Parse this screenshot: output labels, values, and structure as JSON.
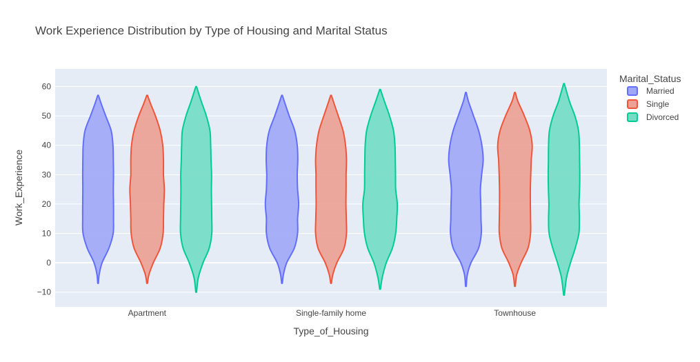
{
  "chart_data": {
    "type": "violin",
    "title": "Work Experience Distribution by Type of Housing and Marital Status",
    "xlabel": "Type_of_Housing",
    "ylabel": "Work_Experience",
    "categories": [
      "Apartment",
      "Single-family home",
      "Townhouse"
    ],
    "ylim": [
      -15,
      66
    ],
    "yticks": [
      -10,
      0,
      10,
      20,
      30,
      40,
      50,
      60
    ],
    "grid": true,
    "legend": {
      "title": "Marital_Status",
      "placement": "top-right"
    },
    "series": [
      {
        "name": "Married",
        "fill": "#a0a8f5",
        "line": "#636efa",
        "violins": [
          {
            "category": "Apartment",
            "min": -7,
            "max": 57,
            "profile": [
              [
                -7,
                0.02
              ],
              [
                -4,
                0.06
              ],
              [
                0,
                0.22
              ],
              [
                5,
                0.6
              ],
              [
                10,
                0.83
              ],
              [
                15,
                0.85
              ],
              [
                20,
                0.85
              ],
              [
                25,
                0.84
              ],
              [
                30,
                0.85
              ],
              [
                35,
                0.84
              ],
              [
                40,
                0.82
              ],
              [
                45,
                0.72
              ],
              [
                50,
                0.42
              ],
              [
                54,
                0.18
              ],
              [
                57,
                0.02
              ]
            ]
          },
          {
            "category": "Single-family home",
            "min": -7,
            "max": 57,
            "profile": [
              [
                -7,
                0.02
              ],
              [
                -4,
                0.08
              ],
              [
                0,
                0.26
              ],
              [
                5,
                0.68
              ],
              [
                10,
                0.86
              ],
              [
                15,
                0.86
              ],
              [
                20,
                0.92
              ],
              [
                25,
                0.86
              ],
              [
                30,
                0.84
              ],
              [
                35,
                0.87
              ],
              [
                40,
                0.84
              ],
              [
                45,
                0.7
              ],
              [
                50,
                0.4
              ],
              [
                54,
                0.18
              ],
              [
                57,
                0.02
              ]
            ]
          },
          {
            "category": "Townhouse",
            "min": -8,
            "max": 58,
            "profile": [
              [
                -8,
                0.02
              ],
              [
                -4,
                0.08
              ],
              [
                0,
                0.28
              ],
              [
                5,
                0.7
              ],
              [
                10,
                0.85
              ],
              [
                15,
                0.83
              ],
              [
                20,
                0.82
              ],
              [
                25,
                0.8
              ],
              [
                30,
                0.87
              ],
              [
                35,
                0.95
              ],
              [
                40,
                0.88
              ],
              [
                45,
                0.7
              ],
              [
                50,
                0.42
              ],
              [
                55,
                0.14
              ],
              [
                58,
                0.02
              ]
            ]
          }
        ]
      },
      {
        "name": "Single",
        "fill": "#eda195",
        "line": "#ef553b",
        "violins": [
          {
            "category": "Apartment",
            "min": -7,
            "max": 57,
            "profile": [
              [
                -7,
                0.02
              ],
              [
                -4,
                0.1
              ],
              [
                0,
                0.34
              ],
              [
                5,
                0.72
              ],
              [
                10,
                0.88
              ],
              [
                15,
                0.9
              ],
              [
                20,
                0.92
              ],
              [
                25,
                0.95
              ],
              [
                30,
                0.9
              ],
              [
                35,
                0.9
              ],
              [
                40,
                0.86
              ],
              [
                45,
                0.72
              ],
              [
                50,
                0.46
              ],
              [
                54,
                0.2
              ],
              [
                57,
                0.02
              ]
            ]
          },
          {
            "category": "Single-family home",
            "min": -7,
            "max": 57,
            "profile": [
              [
                -7,
                0.02
              ],
              [
                -4,
                0.1
              ],
              [
                0,
                0.32
              ],
              [
                5,
                0.72
              ],
              [
                10,
                0.85
              ],
              [
                15,
                0.84
              ],
              [
                20,
                0.82
              ],
              [
                25,
                0.83
              ],
              [
                30,
                0.83
              ],
              [
                35,
                0.85
              ],
              [
                40,
                0.8
              ],
              [
                45,
                0.66
              ],
              [
                50,
                0.4
              ],
              [
                54,
                0.18
              ],
              [
                57,
                0.02
              ]
            ]
          },
          {
            "category": "Townhouse",
            "min": -8,
            "max": 58,
            "profile": [
              [
                -8,
                0.02
              ],
              [
                -4,
                0.1
              ],
              [
                0,
                0.34
              ],
              [
                5,
                0.72
              ],
              [
                10,
                0.86
              ],
              [
                15,
                0.86
              ],
              [
                20,
                0.85
              ],
              [
                25,
                0.85
              ],
              [
                30,
                0.87
              ],
              [
                35,
                0.9
              ],
              [
                40,
                0.95
              ],
              [
                45,
                0.82
              ],
              [
                50,
                0.52
              ],
              [
                55,
                0.16
              ],
              [
                58,
                0.02
              ]
            ]
          }
        ]
      },
      {
        "name": "Divorced",
        "fill": "#74dcc5",
        "line": "#00cc96",
        "violins": [
          {
            "category": "Apartment",
            "min": -10,
            "max": 60,
            "profile": [
              [
                -10,
                0.02
              ],
              [
                -5,
                0.12
              ],
              [
                0,
                0.38
              ],
              [
                5,
                0.72
              ],
              [
                10,
                0.86
              ],
              [
                15,
                0.86
              ],
              [
                20,
                0.85
              ],
              [
                25,
                0.84
              ],
              [
                30,
                0.85
              ],
              [
                35,
                0.82
              ],
              [
                40,
                0.8
              ],
              [
                45,
                0.76
              ],
              [
                50,
                0.56
              ],
              [
                55,
                0.28
              ],
              [
                60,
                0.02
              ]
            ]
          },
          {
            "category": "Single-family home",
            "min": -9,
            "max": 59,
            "profile": [
              [
                -9,
                0.02
              ],
              [
                -5,
                0.12
              ],
              [
                0,
                0.34
              ],
              [
                5,
                0.68
              ],
              [
                10,
                0.86
              ],
              [
                15,
                0.92
              ],
              [
                20,
                0.95
              ],
              [
                25,
                0.86
              ],
              [
                30,
                0.85
              ],
              [
                35,
                0.84
              ],
              [
                40,
                0.82
              ],
              [
                45,
                0.74
              ],
              [
                50,
                0.52
              ],
              [
                55,
                0.24
              ],
              [
                59,
                0.02
              ]
            ]
          },
          {
            "category": "Townhouse",
            "min": -11,
            "max": 61,
            "profile": [
              [
                -11,
                0.02
              ],
              [
                -5,
                0.14
              ],
              [
                0,
                0.36
              ],
              [
                5,
                0.62
              ],
              [
                10,
                0.82
              ],
              [
                15,
                0.85
              ],
              [
                20,
                0.83
              ],
              [
                25,
                0.86
              ],
              [
                30,
                0.87
              ],
              [
                35,
                0.86
              ],
              [
                40,
                0.85
              ],
              [
                45,
                0.8
              ],
              [
                50,
                0.6
              ],
              [
                55,
                0.3
              ],
              [
                61,
                0.02
              ]
            ]
          }
        ]
      }
    ]
  }
}
